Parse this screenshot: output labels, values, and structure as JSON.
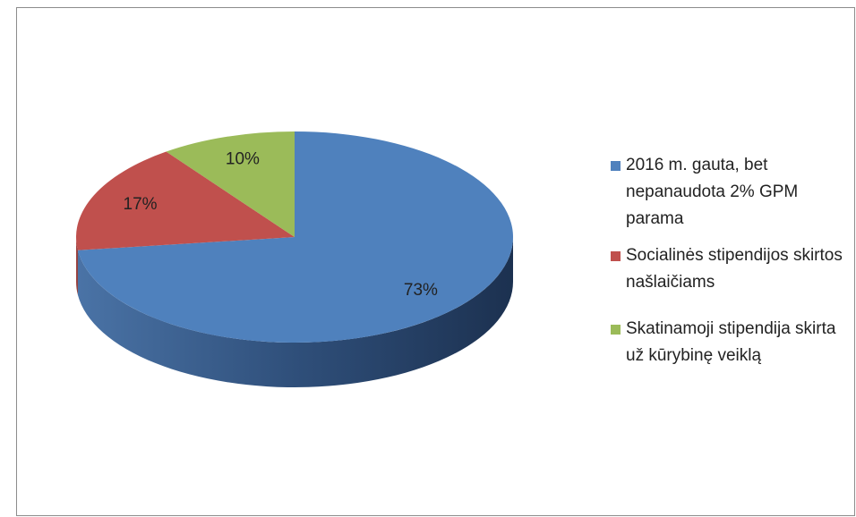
{
  "chart_data": {
    "type": "pie",
    "categories": [
      "2016 m. gauta, bet nepanaudota 2% GPM parama",
      "Socialinės stipendijos skirtos našlaičiams",
      "Skatinamoji stipendija skirta už kūrybinę veiklą"
    ],
    "values": [
      73,
      17,
      10
    ],
    "value_labels": [
      "73%",
      "17%",
      "10%"
    ],
    "colors": [
      "#4f81bd",
      "#c0504d",
      "#9bbb59"
    ],
    "legend": "right"
  }
}
